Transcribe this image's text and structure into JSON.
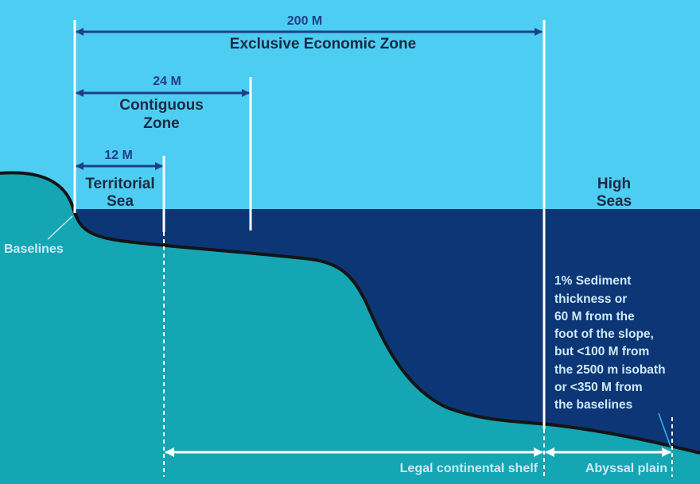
{
  "colors": {
    "sky": "#4ecdf2",
    "deep_water": "#0c3676",
    "seabed": "#14a6b2",
    "seabed_outline": "#141414",
    "zone_arrow": "#1d3f86",
    "boundary_line": "#ffffff"
  },
  "zones": {
    "eez": {
      "distance": "200 M",
      "label": "Exclusive Economic Zone"
    },
    "contiguous": {
      "distance": "24 M",
      "label_line1": "Contiguous",
      "label_line2": "Zone"
    },
    "territorial": {
      "distance": "12 M",
      "label_line1": "Territorial",
      "label_line2": "Sea"
    }
  },
  "high_seas": {
    "line1": "High",
    "line2": "Seas"
  },
  "baselines_label": "Baselines",
  "sediment_note": [
    "1% Sediment",
    "thickness or",
    "60 M from the",
    "foot of the slope,",
    "but <100 M from",
    "the 2500 m isobath",
    "or <350 M from",
    "the baselines"
  ],
  "shelf_label": "Legal continental shelf",
  "abyssal_label": "Abyssal plain"
}
